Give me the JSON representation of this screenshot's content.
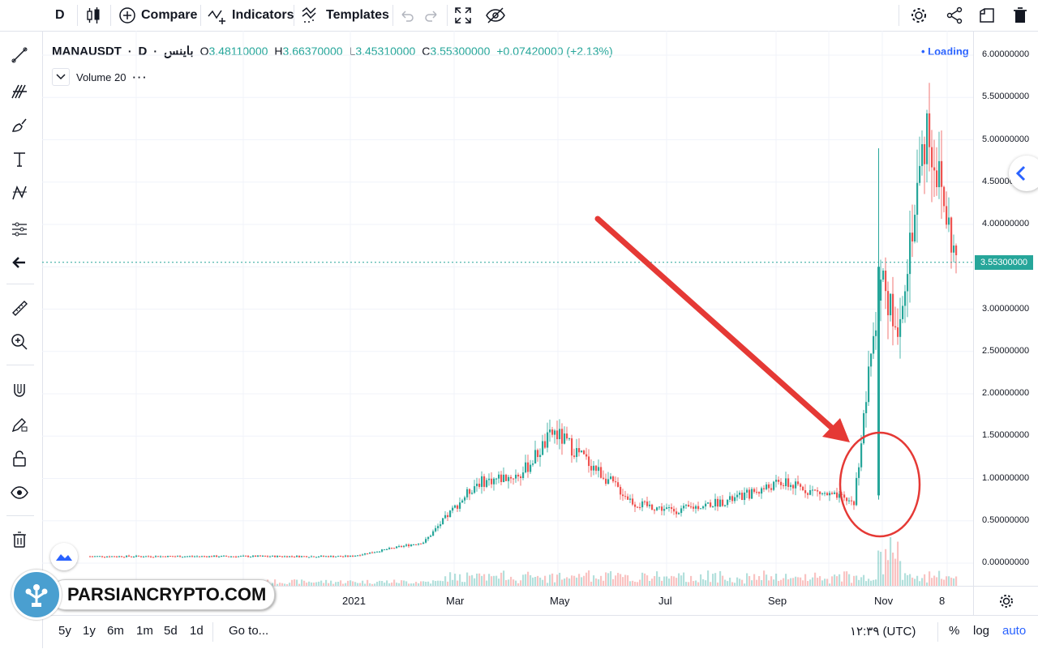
{
  "toolbar": {
    "interval": "D",
    "compare_label": "Compare",
    "indicators_label": "Indicators",
    "templates_label": "Templates"
  },
  "legend": {
    "symbol": "MANAUSDT",
    "interval": "D",
    "exchange": "باینس",
    "open_label": "O",
    "open": "3.48110000",
    "high_label": "H",
    "high": "3.66370000",
    "low_label": "L",
    "low": "3.45310000",
    "close_label": "C",
    "close": "3.55300000",
    "change": "+0.07420000 (+2.13%)"
  },
  "volume_legend": "Volume 20",
  "loading": "Loading",
  "price_axis": {
    "labels": [
      "6.00000000",
      "5.50000000",
      "5.00000000",
      "4.50000000",
      "4.00000000",
      "3.50000000",
      "3.00000000",
      "2.50000000",
      "2.00000000",
      "1.50000000",
      "1.00000000",
      "0.50000000",
      "0.00000000"
    ],
    "last_price": "3.55300000"
  },
  "time_axis": {
    "labels": [
      "2021",
      "Mar",
      "May",
      "Jul",
      "Sep",
      "Nov",
      "8"
    ]
  },
  "bottombar": {
    "ranges": [
      "5y",
      "1y",
      "6m",
      "1m",
      "5d",
      "1d"
    ],
    "goto": "Go to...",
    "clock": "۱۲:۳۹ (UTC)",
    "percent": "%",
    "log": "log",
    "auto": "auto"
  },
  "watermark": "PARSIANCRYPTO.COM",
  "colors": {
    "up": "#26a69a",
    "down": "#ef5350",
    "arrow": "#e53935",
    "accent": "#2962ff"
  },
  "chart_data": {
    "type": "candlestick",
    "symbol": "MANAUSDT",
    "interval": "D",
    "x_ticks": [
      "2021",
      "Mar",
      "May",
      "Jul",
      "Sep",
      "Nov",
      "8"
    ],
    "y_range": [
      0,
      6
    ],
    "close_points": [
      {
        "x": "Nov 2020",
        "y": 0.08
      },
      {
        "x": "Dec 2020",
        "y": 0.08
      },
      {
        "x": "2021",
        "y": 0.08
      },
      {
        "x": "Feb 2021",
        "y": 0.25
      },
      {
        "x": "Mar 2021",
        "y": 0.95
      },
      {
        "x": "Apr 2021",
        "y": 1.05
      },
      {
        "x": "late Apr 2021",
        "y": 1.55
      },
      {
        "x": "May 2021",
        "y": 1.3
      },
      {
        "x": "Jun 2021",
        "y": 0.7
      },
      {
        "x": "Jul 2021",
        "y": 0.62
      },
      {
        "x": "Aug 2021",
        "y": 0.75
      },
      {
        "x": "Sep 2021",
        "y": 0.95
      },
      {
        "x": "Oct 2021",
        "y": 0.72
      },
      {
        "x": "Nov 2021",
        "y": 3.5
      },
      {
        "x": "mid Nov 2021",
        "y": 2.7
      },
      {
        "x": "late Nov 2021",
        "y": 5.2
      },
      {
        "x": "Dec 2021",
        "y": 3.55
      }
    ]
  }
}
